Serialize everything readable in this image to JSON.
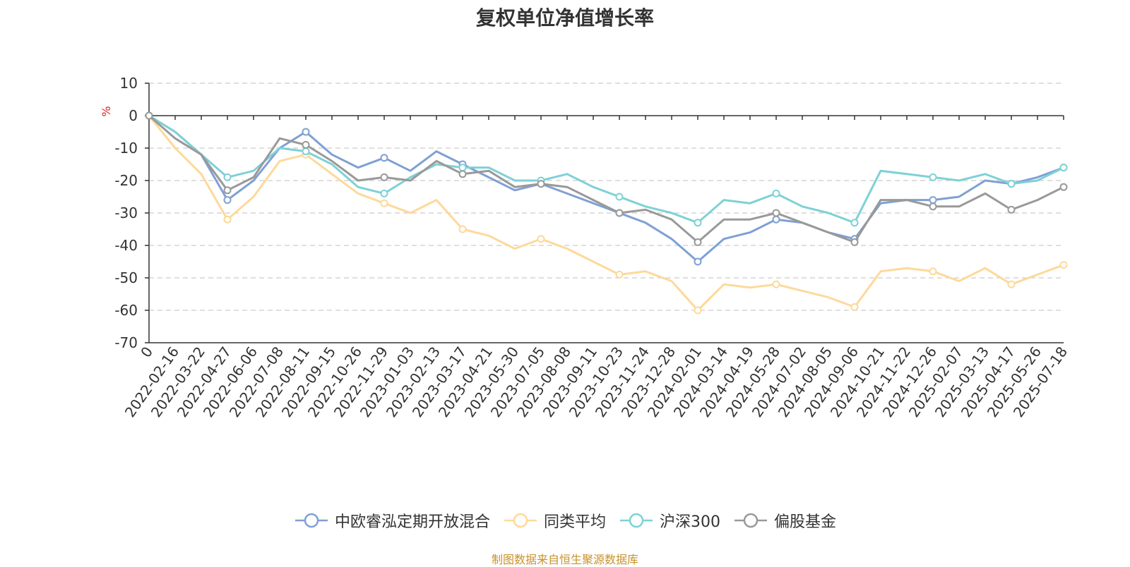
{
  "title": "复权单位净值增长率",
  "source_text": "制图数据来自恒生聚源数据库",
  "colors": {
    "中欧睿泓定期开放混合": "#7fa0d4",
    "同类平均": "#fdd99a",
    "沪深300": "#7ed1d6",
    "偏股基金": "#999999"
  },
  "chart_data": {
    "type": "line",
    "title": "复权单位净值增长率",
    "ylabel": "%",
    "ylim": [
      -70,
      10
    ],
    "yticks": [
      10,
      0,
      -10,
      -20,
      -30,
      -40,
      -50,
      -60,
      -70
    ],
    "grid": true,
    "legend_position": "bottom",
    "x_tick_labels": [
      "0",
      "2022-02-16",
      "2022-03-22",
      "2022-04-27",
      "2022-06-06",
      "2022-07-08",
      "2022-08-11",
      "2022-09-15",
      "2022-10-26",
      "2022-11-29",
      "2023-01-03",
      "2023-02-13",
      "2023-03-17",
      "2023-04-21",
      "2023-05-30",
      "2023-07-05",
      "2023-08-08",
      "2023-09-11",
      "2023-10-23",
      "2023-11-24",
      "2023-12-28",
      "2024-02-01",
      "2024-03-14",
      "2024-04-19",
      "2024-05-28",
      "2024-07-02",
      "2024-08-05",
      "2024-09-06",
      "2024-10-21",
      "2024-11-22",
      "2024-12-26",
      "2025-02-07",
      "2025-03-13",
      "2025-04-17",
      "2025-05-26",
      "2025-07-18"
    ],
    "series": [
      {
        "name": "中欧睿泓定期开放混合",
        "values": [
          0,
          -5,
          -12,
          -26,
          -20,
          -10,
          -5,
          -12,
          -16,
          -13,
          -17,
          -11,
          -15,
          -19,
          -23,
          -21,
          -24,
          -27,
          -30,
          -33,
          -38,
          -45,
          -38,
          -36,
          -32,
          -33,
          -36,
          -38,
          -27,
          -26,
          -26,
          -25,
          -20,
          -21,
          -19,
          -16
        ]
      },
      {
        "name": "同类平均",
        "values": [
          0,
          -10,
          -18,
          -32,
          -25,
          -14,
          -12,
          -18,
          -24,
          -27,
          -30,
          -26,
          -35,
          -37,
          -41,
          -38,
          -41,
          -45,
          -49,
          -48,
          -51,
          -60,
          -52,
          -53,
          -52,
          -54,
          -56,
          -59,
          -48,
          -47,
          -48,
          -51,
          -47,
          -52,
          -49,
          -46
        ]
      },
      {
        "name": "沪深300",
        "values": [
          0,
          -5,
          -12,
          -19,
          -17,
          -10,
          -11,
          -15,
          -22,
          -24,
          -19,
          -15,
          -16,
          -16,
          -20,
          -20,
          -18,
          -22,
          -25,
          -28,
          -30,
          -33,
          -26,
          -27,
          -24,
          -28,
          -30,
          -33,
          -17,
          -18,
          -19,
          -20,
          -18,
          -21,
          -20,
          -16
        ]
      },
      {
        "name": "偏股基金",
        "values": [
          0,
          -7,
          -12,
          -23,
          -19,
          -7,
          -9,
          -14,
          -20,
          -19,
          -20,
          -14,
          -18,
          -17,
          -22,
          -21,
          -22,
          -26,
          -30,
          -29,
          -32,
          -39,
          -32,
          -32,
          -30,
          -33,
          -36,
          -39,
          -26,
          -26,
          -28,
          -28,
          -24,
          -29,
          -26,
          -22
        ]
      }
    ]
  }
}
